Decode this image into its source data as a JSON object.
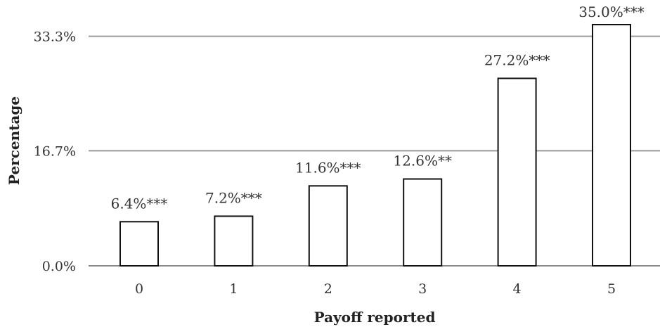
{
  "chart_data": {
    "type": "bar",
    "title": "",
    "xlabel": "Payoff reported",
    "ylabel": "Percentage",
    "categories": [
      "0",
      "1",
      "2",
      "3",
      "4",
      "5"
    ],
    "values": [
      6.4,
      7.2,
      11.6,
      12.6,
      27.2,
      35.0
    ],
    "data_labels": [
      "6.4%***",
      "7.2%***",
      "11.6%***",
      "12.6%**",
      "27.2%***",
      "35.0%***"
    ],
    "yticks": [
      0.0,
      16.7,
      33.3
    ],
    "ytick_labels": [
      "0.0%",
      "16.7%",
      "33.3%"
    ],
    "ylim": [
      0,
      35.0
    ],
    "grid": true,
    "legend": "none",
    "colors": {
      "bar_fill": "#ffffff",
      "bar_stroke": "#111111",
      "grid": "#9a9a9a"
    }
  }
}
